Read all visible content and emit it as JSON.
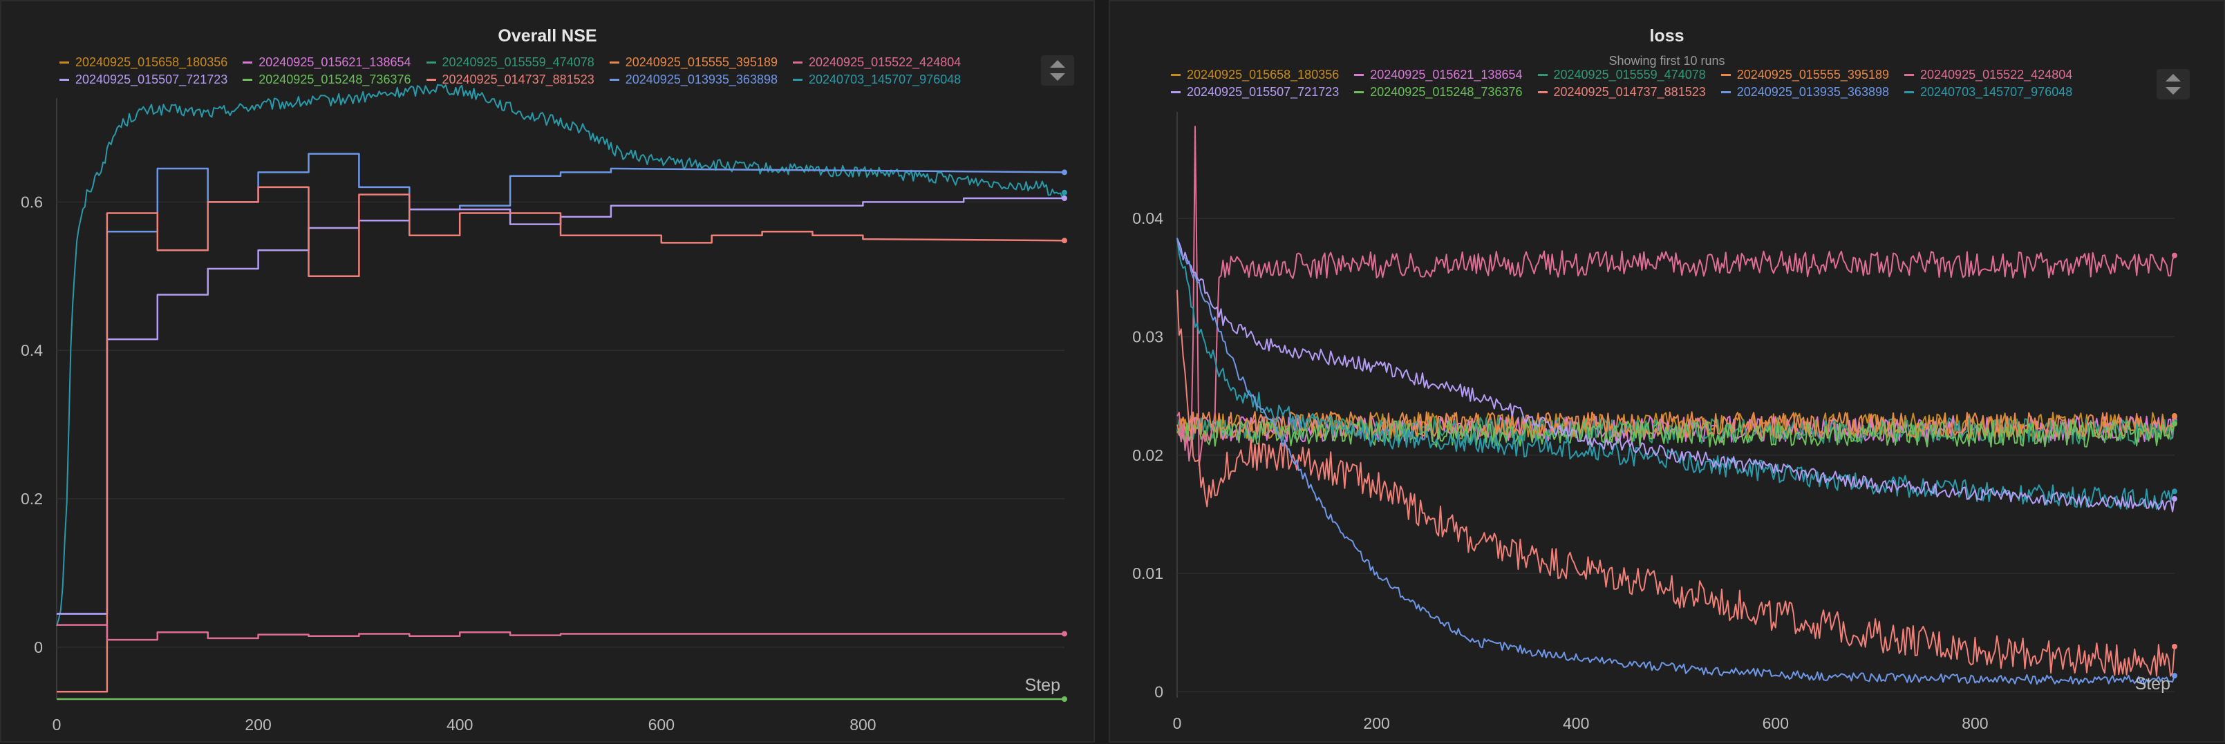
{
  "colors": {
    "run_180356": "#c98a1f",
    "run_138654": "#d97ad9",
    "run_474078": "#2f9a7a",
    "run_395189": "#e8884a",
    "run_424804": "#e06d95",
    "run_721723": "#b59cf5",
    "run_736376": "#6cbf5a",
    "run_881523": "#f08078",
    "run_363898": "#6f97e8",
    "run_976048": "#2a9aaa"
  },
  "legend": [
    {
      "label": "20240925_015658_180356",
      "color": "#c98a1f"
    },
    {
      "label": "20240925_015621_138654",
      "color": "#d97ad9"
    },
    {
      "label": "20240925_015559_474078",
      "color": "#2f9a7a"
    },
    {
      "label": "20240925_015555_395189",
      "color": "#e8884a"
    },
    {
      "label": "20240925_015522_424804",
      "color": "#e06d95"
    },
    {
      "label": "20240925_015507_721723",
      "color": "#b59cf5"
    },
    {
      "label": "20240925_015248_736376",
      "color": "#6cbf5a"
    },
    {
      "label": "20240925_014737_881523",
      "color": "#f08078"
    },
    {
      "label": "20240925_013935_363898",
      "color": "#6f97e8"
    },
    {
      "label": "20240703_145707_976048",
      "color": "#2a9aaa"
    }
  ],
  "chart_data": [
    {
      "type": "line",
      "title": "Overall NSE",
      "xlabel": "Step",
      "ylabel": "",
      "xlim": [
        0,
        1000
      ],
      "ylim": [
        -0.07,
        0.74
      ],
      "xticks": [
        0,
        200,
        400,
        600,
        800
      ],
      "yticks": [
        0,
        0.2,
        0.4,
        0.6
      ],
      "ytick_labels": [
        "0",
        "0.2",
        "0.4",
        "0.6"
      ],
      "grid": true,
      "legend_position": "top",
      "series": [
        {
          "name": "20240703_145707_976048",
          "color": "#2a9aaa",
          "noise": 0.008,
          "points": [
            [
              0,
              0.03
            ],
            [
              5,
              0.06
            ],
            [
              10,
              0.2
            ],
            [
              15,
              0.45
            ],
            [
              20,
              0.55
            ],
            [
              30,
              0.61
            ],
            [
              45,
              0.65
            ],
            [
              60,
              0.7
            ],
            [
              80,
              0.72
            ],
            [
              100,
              0.725
            ],
            [
              150,
              0.72
            ],
            [
              200,
              0.73
            ],
            [
              300,
              0.74
            ],
            [
              380,
              0.755
            ],
            [
              420,
              0.745
            ],
            [
              460,
              0.72
            ],
            [
              520,
              0.7
            ],
            [
              560,
              0.665
            ],
            [
              600,
              0.655
            ],
            [
              700,
              0.645
            ],
            [
              800,
              0.64
            ],
            [
              900,
              0.63
            ],
            [
              980,
              0.62
            ],
            [
              1000,
              0.605
            ]
          ]
        },
        {
          "name": "20240925_013935_363898",
          "color": "#6f97e8",
          "step": true,
          "points": [
            [
              0,
              0.045
            ],
            [
              50,
              0.045
            ],
            [
              50,
              0.56
            ],
            [
              100,
              0.56
            ],
            [
              100,
              0.645
            ],
            [
              150,
              0.645
            ],
            [
              150,
              0.6
            ],
            [
              200,
              0.6
            ],
            [
              200,
              0.64
            ],
            [
              250,
              0.64
            ],
            [
              250,
              0.665
            ],
            [
              300,
              0.665
            ],
            [
              300,
              0.62
            ],
            [
              350,
              0.62
            ],
            [
              350,
              0.59
            ],
            [
              400,
              0.59
            ],
            [
              400,
              0.595
            ],
            [
              450,
              0.595
            ],
            [
              450,
              0.635
            ],
            [
              500,
              0.635
            ],
            [
              500,
              0.64
            ],
            [
              550,
              0.64
            ],
            [
              550,
              0.645
            ],
            [
              1000,
              0.64
            ]
          ]
        },
        {
          "name": "20240925_015507_721723",
          "color": "#b59cf5",
          "step": true,
          "points": [
            [
              0,
              0.045
            ],
            [
              50,
              0.045
            ],
            [
              50,
              0.415
            ],
            [
              100,
              0.415
            ],
            [
              100,
              0.475
            ],
            [
              150,
              0.475
            ],
            [
              150,
              0.51
            ],
            [
              200,
              0.51
            ],
            [
              200,
              0.535
            ],
            [
              250,
              0.535
            ],
            [
              250,
              0.565
            ],
            [
              300,
              0.565
            ],
            [
              300,
              0.575
            ],
            [
              350,
              0.575
            ],
            [
              350,
              0.59
            ],
            [
              450,
              0.59
            ],
            [
              450,
              0.57
            ],
            [
              500,
              0.57
            ],
            [
              500,
              0.58
            ],
            [
              550,
              0.58
            ],
            [
              550,
              0.595
            ],
            [
              800,
              0.595
            ],
            [
              800,
              0.6
            ],
            [
              900,
              0.6
            ],
            [
              900,
              0.605
            ],
            [
              1000,
              0.605
            ]
          ]
        },
        {
          "name": "20240925_014737_881523",
          "color": "#f08078",
          "step": true,
          "points": [
            [
              0,
              -0.06
            ],
            [
              50,
              -0.06
            ],
            [
              50,
              0.585
            ],
            [
              100,
              0.585
            ],
            [
              100,
              0.535
            ],
            [
              150,
              0.535
            ],
            [
              150,
              0.6
            ],
            [
              200,
              0.6
            ],
            [
              200,
              0.62
            ],
            [
              250,
              0.62
            ],
            [
              250,
              0.5
            ],
            [
              300,
              0.5
            ],
            [
              300,
              0.61
            ],
            [
              350,
              0.61
            ],
            [
              350,
              0.555
            ],
            [
              400,
              0.555
            ],
            [
              400,
              0.585
            ],
            [
              500,
              0.585
            ],
            [
              500,
              0.555
            ],
            [
              600,
              0.555
            ],
            [
              600,
              0.545
            ],
            [
              650,
              0.545
            ],
            [
              650,
              0.555
            ],
            [
              700,
              0.555
            ],
            [
              700,
              0.56
            ],
            [
              750,
              0.56
            ],
            [
              750,
              0.555
            ],
            [
              800,
              0.555
            ],
            [
              800,
              0.55
            ],
            [
              1000,
              0.548
            ]
          ]
        },
        {
          "name": "20240925_015522_424804",
          "color": "#e06d95",
          "step": true,
          "points": [
            [
              0,
              0.03
            ],
            [
              50,
              0.03
            ],
            [
              50,
              0.01
            ],
            [
              100,
              0.01
            ],
            [
              100,
              0.02
            ],
            [
              150,
              0.02
            ],
            [
              150,
              0.012
            ],
            [
              200,
              0.012
            ],
            [
              200,
              0.017
            ],
            [
              250,
              0.017
            ],
            [
              250,
              0.015
            ],
            [
              300,
              0.015
            ],
            [
              300,
              0.018
            ],
            [
              350,
              0.018
            ],
            [
              350,
              0.015
            ],
            [
              400,
              0.015
            ],
            [
              400,
              0.02
            ],
            [
              450,
              0.02
            ],
            [
              450,
              0.016
            ],
            [
              500,
              0.016
            ],
            [
              500,
              0.018
            ],
            [
              1000,
              0.018
            ]
          ]
        },
        {
          "name": "20240925_015248_736376",
          "color": "#6cbf5a",
          "points": [
            [
              0,
              -0.07
            ],
            [
              1000,
              -0.07
            ]
          ]
        }
      ]
    },
    {
      "type": "line",
      "title": "loss",
      "subtitle": "Showing first 10 runs",
      "xlabel": "Step",
      "ylabel": "",
      "xlim": [
        0,
        1000
      ],
      "ylim": [
        -0.0005,
        0.049
      ],
      "xticks": [
        0,
        200,
        400,
        600,
        800
      ],
      "yticks": [
        0,
        0.01,
        0.02,
        0.03,
        0.04
      ],
      "ytick_labels": [
        "0",
        "0.01",
        "0.02",
        "0.03",
        "0.04"
      ],
      "grid": true,
      "legend_position": "top",
      "series": [
        {
          "name": "20240925_015658_180356",
          "color": "#c98a1f",
          "noise": 0.0011,
          "points": [
            [
              0,
              0.0225
            ],
            [
              1000,
              0.0225
            ]
          ]
        },
        {
          "name": "20240925_015621_138654",
          "color": "#d97ad9",
          "noise": 0.0011,
          "points": [
            [
              0,
              0.0222
            ],
            [
              1000,
              0.0222
            ]
          ]
        },
        {
          "name": "20240925_015559_474078",
          "color": "#2f9a7a",
          "noise": 0.0011,
          "points": [
            [
              0,
              0.0222
            ],
            [
              1000,
              0.022
            ]
          ]
        },
        {
          "name": "20240925_015555_395189",
          "color": "#e8884a",
          "noise": 0.0011,
          "points": [
            [
              0,
              0.0226
            ],
            [
              1000,
              0.0225
            ]
          ]
        },
        {
          "name": "20240925_015248_736376",
          "color": "#6cbf5a",
          "noise": 0.0011,
          "points": [
            [
              0,
              0.0218
            ],
            [
              1000,
              0.0218
            ]
          ]
        },
        {
          "name": "20240925_015522_424804",
          "color": "#e06d95",
          "noise": 0.0011,
          "points": [
            [
              0,
              0.023
            ],
            [
              15,
              0.02
            ],
            [
              18,
              0.048
            ],
            [
              22,
              0.02
            ],
            [
              38,
              0.023
            ],
            [
              42,
              0.036
            ],
            [
              60,
              0.036
            ],
            [
              500,
              0.0362
            ],
            [
              1000,
              0.036
            ]
          ]
        },
        {
          "name": "20240703_145707_976048",
          "color": "#2a9aaa",
          "noise": 0.0009,
          "points": [
            [
              0,
              0.038
            ],
            [
              20,
              0.031
            ],
            [
              50,
              0.026
            ],
            [
              100,
              0.0235
            ],
            [
              200,
              0.0215
            ],
            [
              300,
              0.021
            ],
            [
              400,
              0.0205
            ],
            [
              500,
              0.0195
            ],
            [
              600,
              0.0185
            ],
            [
              700,
              0.0175
            ],
            [
              800,
              0.017
            ],
            [
              900,
              0.0165
            ],
            [
              1000,
              0.0162
            ]
          ]
        },
        {
          "name": "20240925_015507_721723",
          "color": "#b59cf5",
          "noise": 0.0006,
          "points": [
            [
              0,
              0.038
            ],
            [
              20,
              0.035
            ],
            [
              50,
              0.031
            ],
            [
              100,
              0.029
            ],
            [
              200,
              0.0275
            ],
            [
              300,
              0.025
            ],
            [
              400,
              0.0215
            ],
            [
              500,
              0.02
            ],
            [
              600,
              0.0188
            ],
            [
              700,
              0.0175
            ],
            [
              800,
              0.0168
            ],
            [
              900,
              0.0162
            ],
            [
              1000,
              0.0158
            ]
          ]
        },
        {
          "name": "20240925_014737_881523",
          "color": "#f08078",
          "noise": 0.0014,
          "points": [
            [
              0,
              0.033
            ],
            [
              15,
              0.021
            ],
            [
              30,
              0.017
            ],
            [
              60,
              0.02
            ],
            [
              100,
              0.02
            ],
            [
              150,
              0.019
            ],
            [
              200,
              0.0175
            ],
            [
              250,
              0.015
            ],
            [
              300,
              0.0125
            ],
            [
              400,
              0.0105
            ],
            [
              500,
              0.0085
            ],
            [
              600,
              0.0065
            ],
            [
              700,
              0.0048
            ],
            [
              800,
              0.0035
            ],
            [
              900,
              0.0028
            ],
            [
              1000,
              0.0026
            ]
          ]
        },
        {
          "name": "20240925_013935_363898",
          "color": "#6f97e8",
          "noise": 0.0004,
          "points": [
            [
              0,
              0.038
            ],
            [
              30,
              0.033
            ],
            [
              60,
              0.027
            ],
            [
              100,
              0.022
            ],
            [
              150,
              0.015
            ],
            [
              200,
              0.01
            ],
            [
              250,
              0.0065
            ],
            [
              300,
              0.0042
            ],
            [
              400,
              0.0028
            ],
            [
              500,
              0.002
            ],
            [
              600,
              0.0015
            ],
            [
              700,
              0.0012
            ],
            [
              800,
              0.0011
            ],
            [
              900,
              0.001
            ],
            [
              1000,
              0.001
            ]
          ]
        }
      ]
    }
  ]
}
